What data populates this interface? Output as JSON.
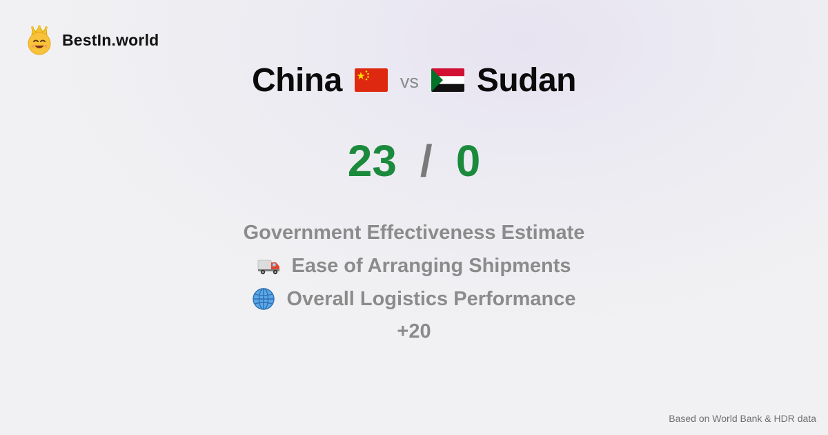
{
  "brand": {
    "name": "BestIn.world",
    "logo_icon": "crown-smiley-icon"
  },
  "matchup": {
    "left": {
      "name": "China",
      "flag_icon": "china-flag-icon",
      "score": "23"
    },
    "vs_label": "vs",
    "right": {
      "name": "Sudan",
      "flag_icon": "sudan-flag-icon",
      "score": "0"
    },
    "separator": "/"
  },
  "metrics": [
    {
      "label": "Government Effectiveness Estimate",
      "icon": null
    },
    {
      "label": "Ease of Arranging Shipments",
      "icon": "truck-icon"
    },
    {
      "label": "Overall Logistics Performance",
      "icon": "globe-icon"
    }
  ],
  "more_label": "+20",
  "footer": "Based on World Bank & HDR data",
  "colors": {
    "winner": "#1b8a3c",
    "muted": "#8b8b8b",
    "separator": "#7a7a7a"
  }
}
